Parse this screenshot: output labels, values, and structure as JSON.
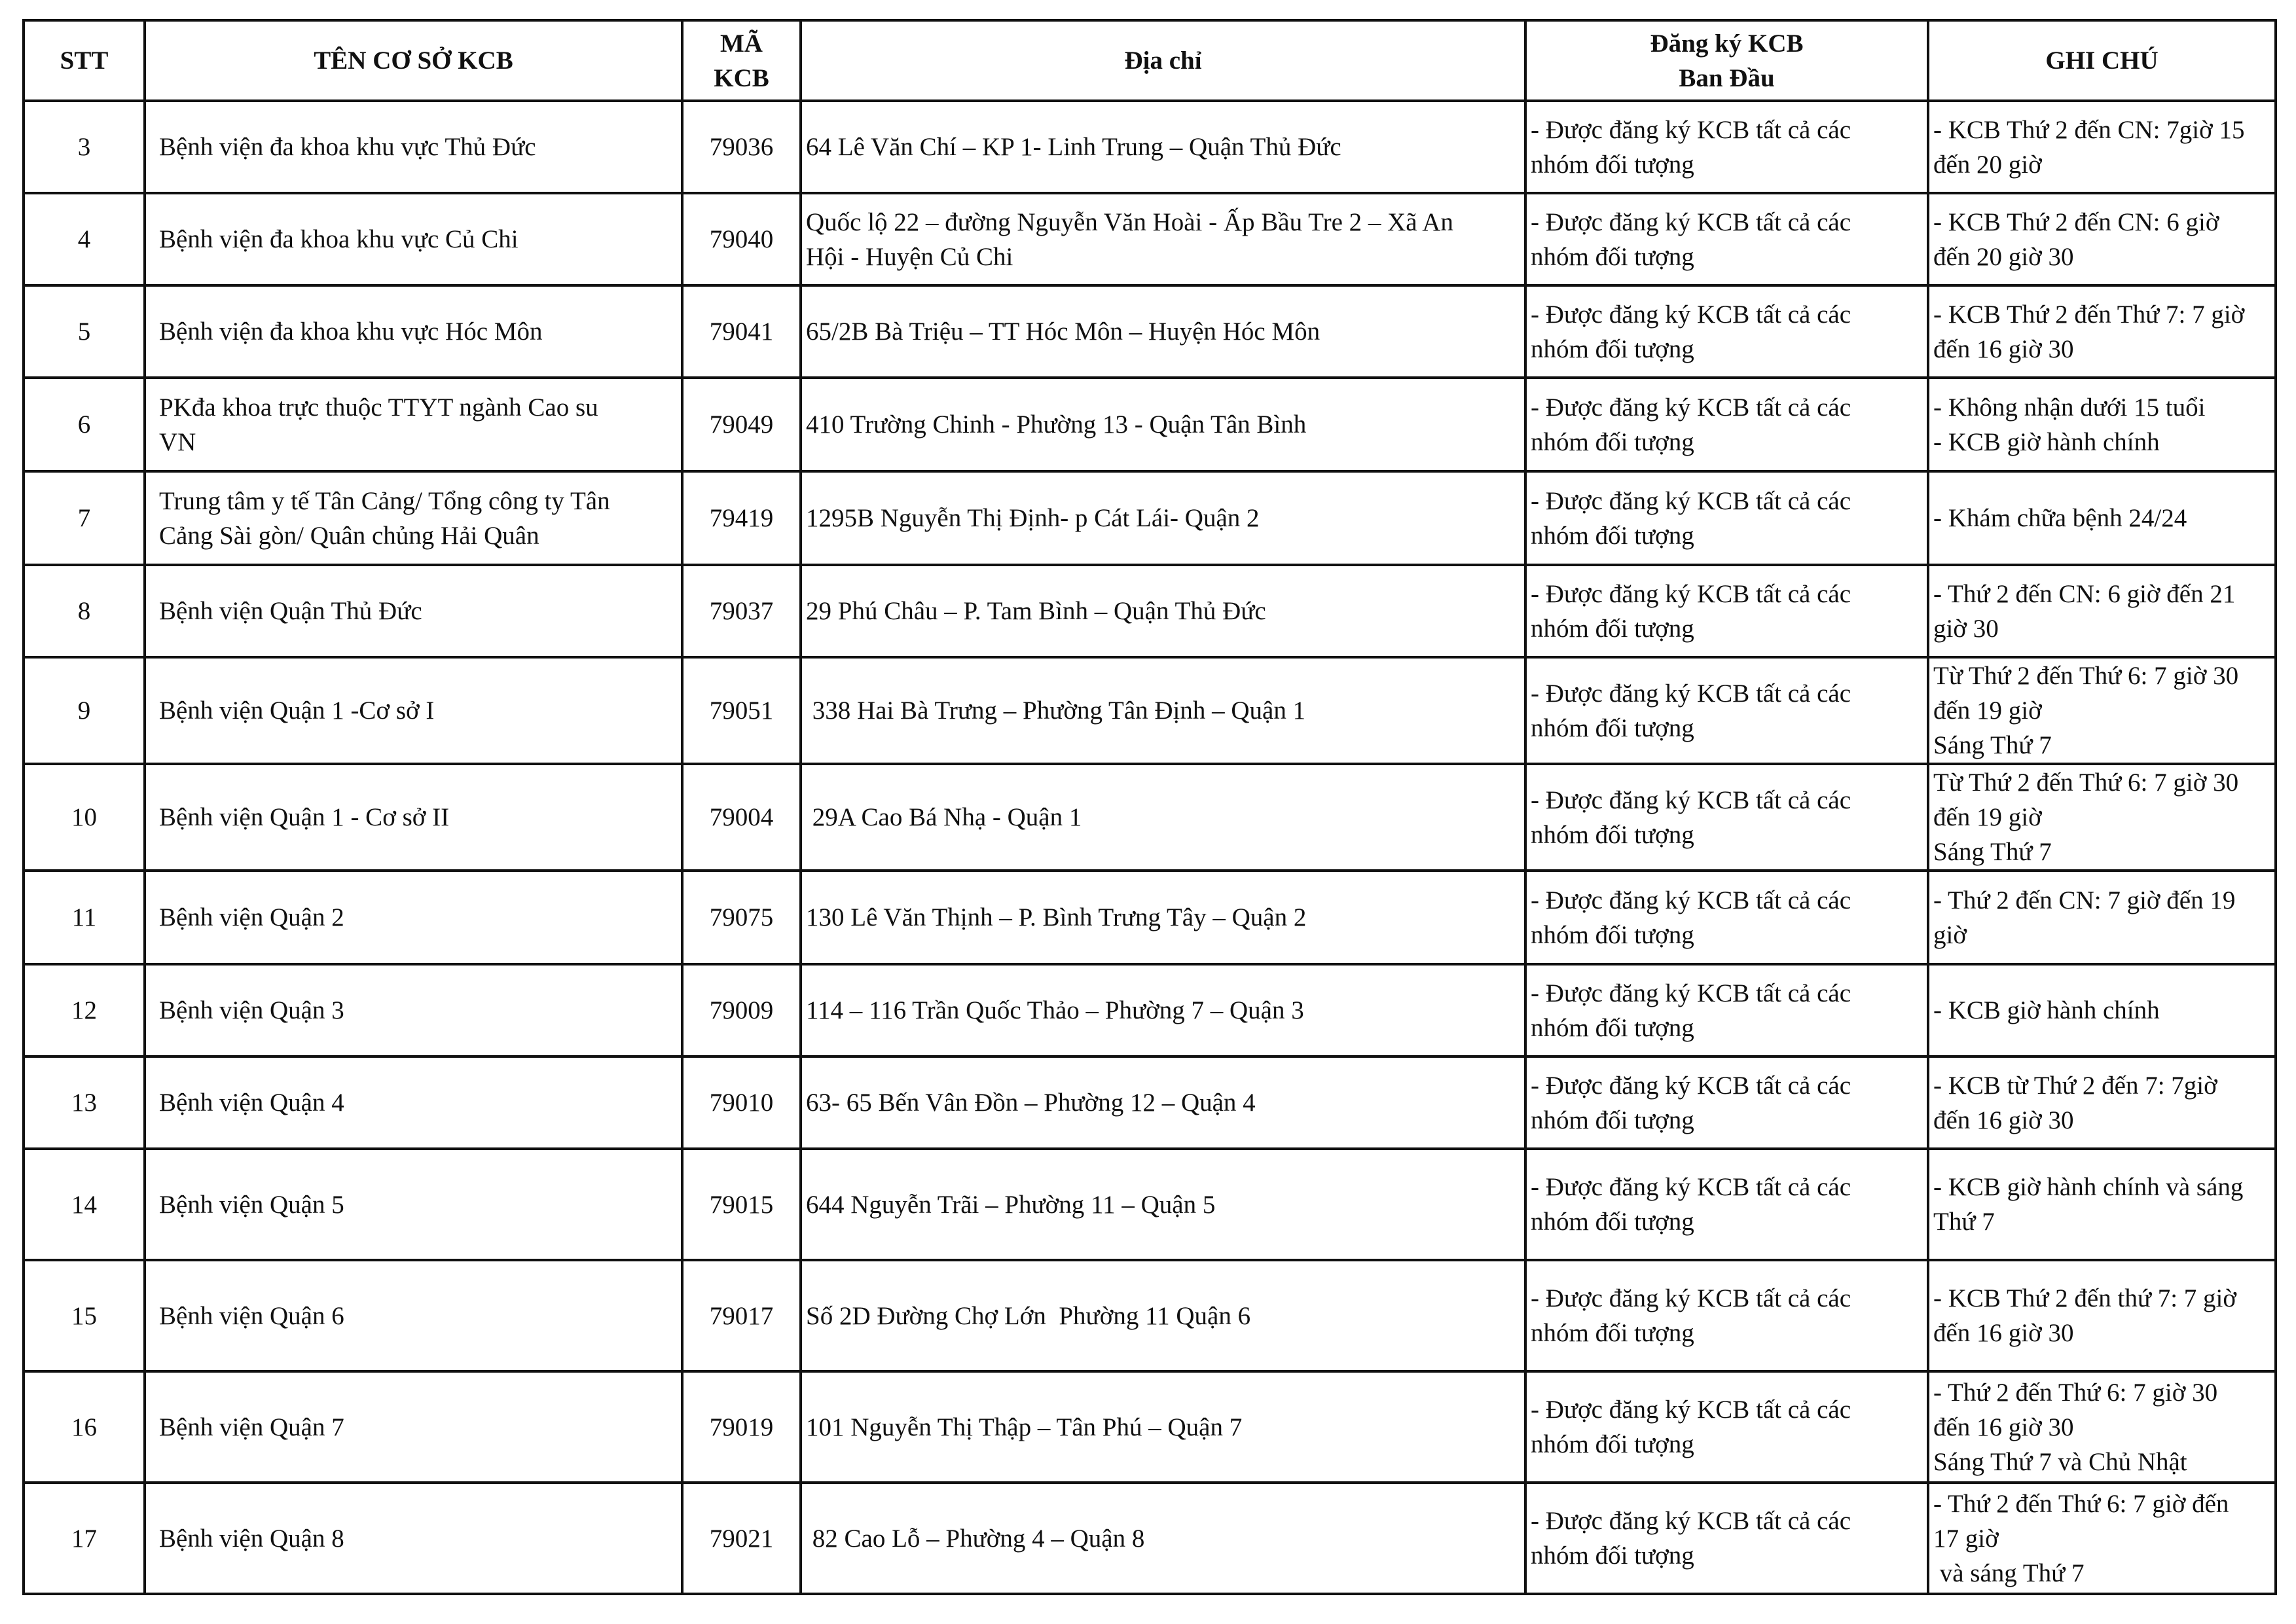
{
  "header": {
    "stt": "STT",
    "ten": "TÊN CƠ SỞ KCB",
    "ma_1": "MÃ",
    "ma_2": "KCB",
    "diachi": "Địa chỉ",
    "dangky_1": "Đăng ký KCB",
    "dangky_2": "Ban Đầu",
    "ghichu": "GHI CHÚ"
  },
  "rows": [
    {
      "stt": "3",
      "ten": [
        "Bệnh viện đa khoa khu vực Thủ Đức"
      ],
      "ma": "79036",
      "diachi": [
        "64 Lê Văn Chí – KP 1- Linh Trung – Quận Thủ Đức"
      ],
      "dangky": [
        "- Được đăng ký KCB tất cả các",
        "nhóm đối tượng"
      ],
      "ghichu": [
        "- KCB Thứ 2 đến CN: 7giờ 15",
        "đến 20 giờ"
      ]
    },
    {
      "stt": "4",
      "ten": [
        "Bệnh viện đa khoa khu vực Củ Chi"
      ],
      "ma": "79040",
      "diachi": [
        "Quốc lộ 22 – đường Nguyễn Văn Hoài - Ấp Bầu Tre 2 – Xã An",
        "Hội - Huyện Củ Chi"
      ],
      "dangky": [
        "- Được đăng ký KCB tất cả các",
        "nhóm đối tượng"
      ],
      "ghichu": [
        "- KCB Thứ 2 đến CN: 6 giờ",
        "đến 20 giờ 30"
      ]
    },
    {
      "stt": "5",
      "ten": [
        "Bệnh viện đa khoa khu vực Hóc Môn"
      ],
      "ma": "79041",
      "diachi": [
        "65/2B Bà Triệu – TT Hóc Môn – Huyện Hóc Môn"
      ],
      "dangky": [
        "- Được đăng ký KCB tất cả các",
        "nhóm đối tượng"
      ],
      "ghichu": [
        "- KCB Thứ 2 đến Thứ 7: 7 giờ",
        "đến 16 giờ 30"
      ]
    },
    {
      "stt": "6",
      "ten": [
        "PKđa khoa trực thuộc TTYT ngành Cao su",
        "VN"
      ],
      "ma": "79049",
      "diachi": [
        "410 Trường Chinh - Phường 13 - Quận Tân Bình"
      ],
      "dangky": [
        "- Được đăng ký KCB tất cả các",
        "nhóm đối tượng"
      ],
      "ghichu": [
        "- Không nhận dưới 15 tuổi",
        "- KCB giờ hành chính"
      ]
    },
    {
      "stt": "7",
      "ten": [
        "Trung tâm y tế Tân Cảng/ Tổng công ty Tân",
        "Cảng Sài gòn/ Quân chủng Hải Quân"
      ],
      "ma": "79419",
      "diachi": [
        "1295B Nguyễn Thị Định- p Cát Lái- Quận 2"
      ],
      "dangky": [
        "- Được đăng ký KCB tất cả các",
        "nhóm đối tượng"
      ],
      "ghichu": [
        "- Khám chữa bệnh 24/24"
      ]
    },
    {
      "stt": "8",
      "ten": [
        "Bệnh viện Quận Thủ Đức"
      ],
      "ma": "79037",
      "diachi": [
        "29 Phú Châu – P. Tam Bình – Quận Thủ Đức"
      ],
      "dangky": [
        "- Được đăng ký KCB tất cả các",
        "nhóm đối tượng"
      ],
      "ghichu": [
        "- Thứ 2 đến CN: 6 giờ đến 21",
        "giờ 30"
      ]
    },
    {
      "stt": "9",
      "ten": [
        "Bệnh viện Quận 1 -Cơ sở I"
      ],
      "ma": "79051",
      "diachi": [
        " 338 Hai Bà Trưng – Phường Tân Định – Quận 1"
      ],
      "dangky": [
        "- Được đăng ký KCB tất cả các",
        "nhóm đối tượng"
      ],
      "ghichu": [
        "Từ Thứ 2 đến Thứ 6: 7 giờ 30",
        "đến 19 giờ",
        "Sáng Thứ 7"
      ]
    },
    {
      "stt": "10",
      "ten": [
        "Bệnh viện Quận 1 - Cơ sở II"
      ],
      "ma": "79004",
      "diachi": [
        " 29A Cao Bá Nhạ - Quận 1"
      ],
      "dangky": [
        "- Được đăng ký KCB tất cả các",
        "nhóm đối tượng"
      ],
      "ghichu": [
        "Từ Thứ 2 đến Thứ 6: 7 giờ 30",
        "đến 19 giờ",
        "Sáng Thứ 7"
      ]
    },
    {
      "stt": "11",
      "ten": [
        "Bệnh viện Quận 2"
      ],
      "ma": "79075",
      "diachi": [
        "130 Lê Văn Thịnh – P. Bình Trưng Tây – Quận 2"
      ],
      "dangky": [
        "- Được đăng ký KCB tất cả các",
        "nhóm đối tượng"
      ],
      "ghichu": [
        "- Thứ 2 đến CN: 7 giờ đến 19",
        "giờ"
      ]
    },
    {
      "stt": "12",
      "ten": [
        "Bệnh viện Quận 3"
      ],
      "ma": "79009",
      "diachi": [
        "114 – 116 Trần Quốc Thảo – Phường 7 – Quận 3"
      ],
      "dangky": [
        "- Được đăng ký KCB tất cả các",
        "nhóm đối tượng"
      ],
      "ghichu": [
        "- KCB giờ hành chính"
      ]
    },
    {
      "stt": "13",
      "ten": [
        "Bệnh viện Quận 4"
      ],
      "ma": "79010",
      "diachi": [
        "63- 65 Bến Vân Đồn – Phường 12 – Quận 4"
      ],
      "dangky": [
        "- Được đăng ký KCB tất cả các",
        "nhóm đối tượng"
      ],
      "ghichu": [
        "- KCB từ Thứ 2 đến 7: 7giờ",
        "đến 16 giờ 30"
      ]
    },
    {
      "stt": "14",
      "ten": [
        "Bệnh viện Quận 5"
      ],
      "ma": "79015",
      "diachi": [
        "644 Nguyễn Trãi – Phường 11 – Quận 5"
      ],
      "dangky": [
        "- Được đăng ký KCB tất cả các",
        "nhóm đối tượng"
      ],
      "ghichu": [
        "- KCB giờ hành chính và sáng",
        "Thứ 7"
      ]
    },
    {
      "stt": "15",
      "ten": [
        "Bệnh viện Quận 6"
      ],
      "ma": "79017",
      "diachi": [
        "Số 2D Đường Chợ Lớn  Phường 11 Quận 6"
      ],
      "dangky": [
        "- Được đăng ký KCB tất cả các",
        "nhóm đối tượng"
      ],
      "ghichu": [
        "- KCB Thứ 2 đến thứ 7: 7 giờ",
        "đến 16 giờ 30"
      ]
    },
    {
      "stt": "16",
      "ten": [
        "Bệnh viện Quận 7"
      ],
      "ma": "79019",
      "diachi": [
        "101 Nguyễn Thị Thập – Tân Phú – Quận 7"
      ],
      "dangky": [
        "- Được đăng ký KCB tất cả các",
        "nhóm đối tượng"
      ],
      "ghichu": [
        "- Thứ 2 đến Thứ 6: 7 giờ 30",
        "đến 16 giờ 30",
        "Sáng Thứ 7 và Chủ Nhật"
      ]
    },
    {
      "stt": "17",
      "ten": [
        "Bệnh viện Quận 8"
      ],
      "ma": "79021",
      "diachi": [
        " 82 Cao Lỗ – Phường 4 – Quận 8"
      ],
      "dangky": [
        "- Được đăng ký KCB tất cả các",
        "nhóm đối tượng"
      ],
      "ghichu": [
        "- Thứ 2 đến Thứ 6: 7 giờ đến",
        "17 giờ",
        " và sáng Thứ 7"
      ]
    }
  ]
}
